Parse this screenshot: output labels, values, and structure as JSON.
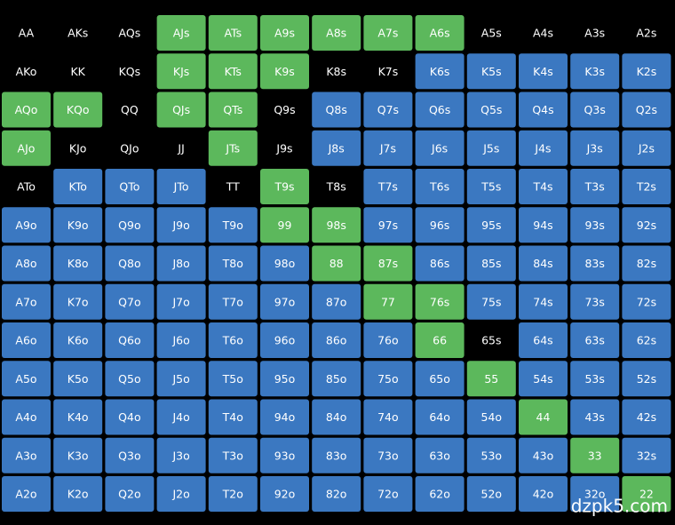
{
  "grid": {
    "rows": [
      {
        "labels": [
          "AA",
          "AKs",
          "AQs",
          "AJs",
          "ATs",
          "A9s",
          "A8s",
          "A7s",
          "A6s",
          "A5s",
          "A4s",
          "A3s",
          "A2s"
        ],
        "colors": [
          "#000000",
          "#000000",
          "#000000",
          "#5cb85c",
          "#5cb85c",
          "#5cb85c",
          "#5cb85c",
          "#5cb85c",
          "#5cb85c",
          "#000000",
          "#000000",
          "#000000",
          "#000000"
        ]
      },
      {
        "labels": [
          "AKo",
          "KK",
          "KQs",
          "KJs",
          "KTs",
          "K9s",
          "K8s",
          "K7s",
          "K6s",
          "K5s",
          "K4s",
          "K3s",
          "K2s"
        ],
        "colors": [
          "#000000",
          "#000000",
          "#000000",
          "#5cb85c",
          "#5cb85c",
          "#5cb85c",
          "#000000",
          "#000000",
          "#3b78c1",
          "#3b78c1",
          "#3b78c1",
          "#3b78c1",
          "#3b78c1"
        ]
      },
      {
        "labels": [
          "AQo",
          "KQo",
          "QQ",
          "QJs",
          "QTs",
          "Q9s",
          "Q8s",
          "Q7s",
          "Q6s",
          "Q5s",
          "Q4s",
          "Q3s",
          "Q2s"
        ],
        "colors": [
          "#5cb85c",
          "#5cb85c",
          "#000000",
          "#5cb85c",
          "#5cb85c",
          "#000000",
          "#3b78c1",
          "#3b78c1",
          "#3b78c1",
          "#3b78c1",
          "#3b78c1",
          "#3b78c1",
          "#3b78c1"
        ]
      },
      {
        "labels": [
          "AJo",
          "KJo",
          "QJo",
          "JJ",
          "JTs",
          "J9s",
          "J8s",
          "J7s",
          "J6s",
          "J5s",
          "J4s",
          "J3s",
          "J2s"
        ],
        "colors": [
          "#5cb85c",
          "#000000",
          "#000000",
          "#000000",
          "#5cb85c",
          "#000000",
          "#3b78c1",
          "#3b78c1",
          "#3b78c1",
          "#3b78c1",
          "#3b78c1",
          "#3b78c1",
          "#3b78c1"
        ]
      },
      {
        "labels": [
          "ATo",
          "KTo",
          "QTo",
          "JTo",
          "TT",
          "T9s",
          "T8s",
          "T7s",
          "T6s",
          "T5s",
          "T4s",
          "T3s",
          "T2s"
        ],
        "colors": [
          "#000000",
          "#3b78c1",
          "#3b78c1",
          "#3b78c1",
          "#000000",
          "#5cb85c",
          "#000000",
          "#3b78c1",
          "#3b78c1",
          "#3b78c1",
          "#3b78c1",
          "#3b78c1",
          "#3b78c1"
        ]
      },
      {
        "labels": [
          "A9o",
          "K9o",
          "Q9o",
          "J9o",
          "T9o",
          "99",
          "98s",
          "97s",
          "96s",
          "95s",
          "94s",
          "93s",
          "92s"
        ],
        "colors": [
          "#3b78c1",
          "#3b78c1",
          "#3b78c1",
          "#3b78c1",
          "#3b78c1",
          "#5cb85c",
          "#5cb85c",
          "#3b78c1",
          "#3b78c1",
          "#3b78c1",
          "#3b78c1",
          "#3b78c1",
          "#3b78c1"
        ]
      },
      {
        "labels": [
          "A8o",
          "K8o",
          "Q8o",
          "J8o",
          "T8o",
          "98o",
          "88",
          "87s",
          "86s",
          "85s",
          "84s",
          "83s",
          "82s"
        ],
        "colors": [
          "#3b78c1",
          "#3b78c1",
          "#3b78c1",
          "#3b78c1",
          "#3b78c1",
          "#3b78c1",
          "#5cb85c",
          "#5cb85c",
          "#3b78c1",
          "#3b78c1",
          "#3b78c1",
          "#3b78c1",
          "#3b78c1"
        ]
      },
      {
        "labels": [
          "A7o",
          "K7o",
          "Q7o",
          "J7o",
          "T7o",
          "97o",
          "87o",
          "77",
          "76s",
          "75s",
          "74s",
          "73s",
          "72s"
        ],
        "colors": [
          "#3b78c1",
          "#3b78c1",
          "#3b78c1",
          "#3b78c1",
          "#3b78c1",
          "#3b78c1",
          "#3b78c1",
          "#5cb85c",
          "#5cb85c",
          "#3b78c1",
          "#3b78c1",
          "#3b78c1",
          "#3b78c1"
        ]
      },
      {
        "labels": [
          "A6o",
          "K6o",
          "Q6o",
          "J6o",
          "T6o",
          "96o",
          "86o",
          "76o",
          "66",
          "65s",
          "64s",
          "63s",
          "62s"
        ],
        "colors": [
          "#3b78c1",
          "#3b78c1",
          "#3b78c1",
          "#3b78c1",
          "#3b78c1",
          "#3b78c1",
          "#3b78c1",
          "#3b78c1",
          "#5cb85c",
          "#000000",
          "#3b78c1",
          "#3b78c1",
          "#3b78c1"
        ]
      },
      {
        "labels": [
          "A5o",
          "K5o",
          "Q5o",
          "J5o",
          "T5o",
          "95o",
          "85o",
          "75o",
          "65o",
          "55",
          "54s",
          "53s",
          "52s"
        ],
        "colors": [
          "#3b78c1",
          "#3b78c1",
          "#3b78c1",
          "#3b78c1",
          "#3b78c1",
          "#3b78c1",
          "#3b78c1",
          "#3b78c1",
          "#3b78c1",
          "#5cb85c",
          "#3b78c1",
          "#3b78c1",
          "#3b78c1"
        ]
      },
      {
        "labels": [
          "A4o",
          "K4o",
          "Q4o",
          "J4o",
          "T4o",
          "94o",
          "84o",
          "74o",
          "64o",
          "54o",
          "44",
          "43s",
          "42s"
        ],
        "colors": [
          "#3b78c1",
          "#3b78c1",
          "#3b78c1",
          "#3b78c1",
          "#3b78c1",
          "#3b78c1",
          "#3b78c1",
          "#3b78c1",
          "#3b78c1",
          "#3b78c1",
          "#5cb85c",
          "#3b78c1",
          "#3b78c1"
        ]
      },
      {
        "labels": [
          "A3o",
          "K3o",
          "Q3o",
          "J3o",
          "T3o",
          "93o",
          "83o",
          "73o",
          "63o",
          "53o",
          "43o",
          "33",
          "32s"
        ],
        "colors": [
          "#3b78c1",
          "#3b78c1",
          "#3b78c1",
          "#3b78c1",
          "#3b78c1",
          "#3b78c1",
          "#3b78c1",
          "#3b78c1",
          "#3b78c1",
          "#3b78c1",
          "#3b78c1",
          "#5cb85c",
          "#3b78c1"
        ]
      },
      {
        "labels": [
          "A2o",
          "K2o",
          "Q2o",
          "J2o",
          "T2o",
          "92o",
          "82o",
          "72o",
          "62o",
          "52o",
          "42o",
          "32o",
          "22"
        ],
        "colors": [
          "#3b78c1",
          "#3b78c1",
          "#3b78c1",
          "#3b78c1",
          "#3b78c1",
          "#3b78c1",
          "#3b78c1",
          "#3b78c1",
          "#3b78c1",
          "#3b78c1",
          "#3b78c1",
          "#3b78c1",
          "#5cb85c"
        ]
      }
    ]
  },
  "watermark": "dzpk5.com"
}
